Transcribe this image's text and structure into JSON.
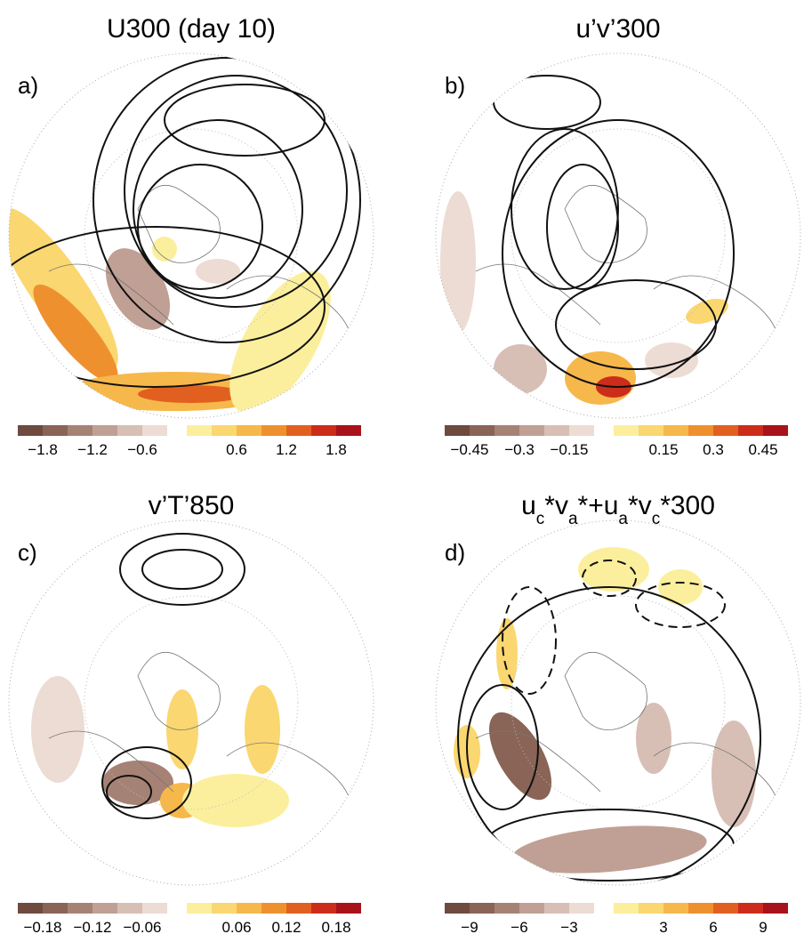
{
  "panels": [
    {
      "title_parts": [
        "U300 (day 10)"
      ],
      "letter": "a)",
      "colorbar": {
        "negative_labels": [
          "−1.8",
          "−1.2",
          "−0.6"
        ],
        "positive_labels": [
          "0.6",
          "1.2",
          "1.8"
        ]
      }
    },
    {
      "title_parts": [
        "u’v’300"
      ],
      "letter": "b)",
      "colorbar": {
        "negative_labels": [
          "−0.45",
          "−0.3",
          "−0.15"
        ],
        "positive_labels": [
          "0.15",
          "0.3",
          "0.45"
        ]
      }
    },
    {
      "title_parts": [
        "v’T’850"
      ],
      "letter": "c)",
      "colorbar": {
        "negative_labels": [
          "−0.18",
          "−0.12",
          "−0.06"
        ],
        "positive_labels": [
          "0.06",
          "0.12",
          "0.18"
        ]
      }
    },
    {
      "title_parts": [
        "u",
        "c",
        "*v",
        "a",
        "*+u",
        "a",
        "*v",
        "c",
        "*300"
      ],
      "letter": "d)",
      "colorbar": {
        "negative_labels": [
          "−9",
          "−6",
          "−3"
        ],
        "positive_labels": [
          "3",
          "6",
          "9"
        ]
      }
    }
  ]
}
